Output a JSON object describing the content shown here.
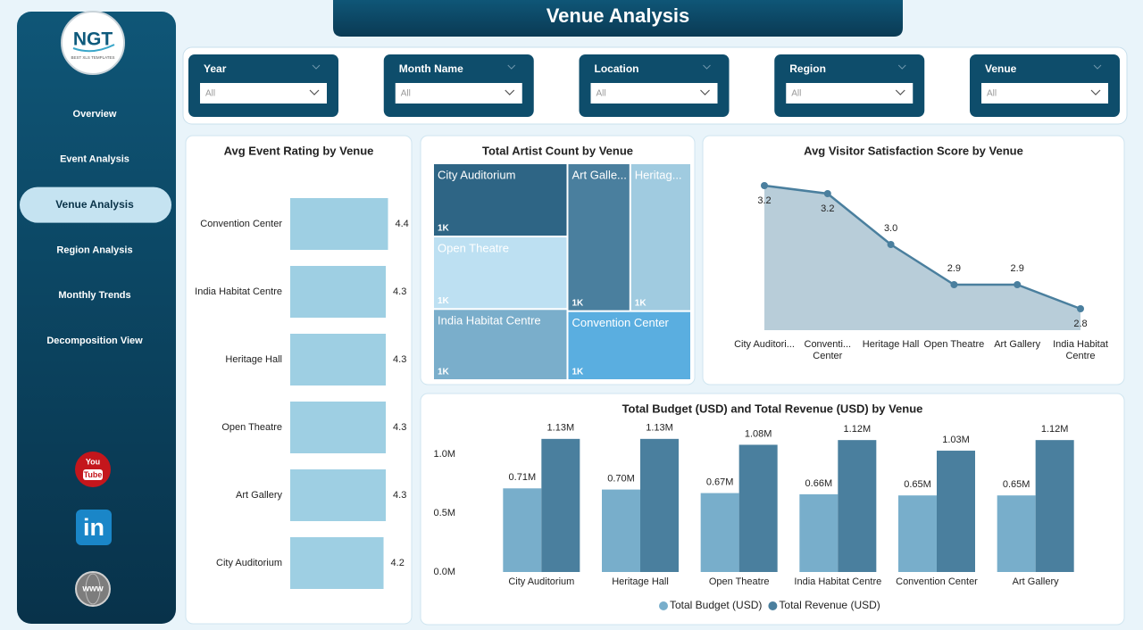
{
  "header": {
    "title": "Venue Analysis"
  },
  "sidebar": {
    "logo": {
      "text": "NGT",
      "tagline": "BEST XLS TEMPLATES"
    },
    "nav": [
      "Overview",
      "Event Analysis",
      "Venue Analysis",
      "Region Analysis",
      "Monthly Trends",
      "Decomposition View"
    ],
    "active_index": 2,
    "icons": {
      "youtube": [
        "You",
        "Tube"
      ],
      "linkedin": "in",
      "website": "www"
    }
  },
  "filters": [
    {
      "label": "Year",
      "value": "All"
    },
    {
      "label": "Month Name",
      "value": "All"
    },
    {
      "label": "Location",
      "value": "All"
    },
    {
      "label": "Region",
      "value": "All"
    },
    {
      "label": "Venue",
      "value": "All"
    }
  ],
  "chart_data": [
    {
      "type": "bar",
      "orientation": "horizontal",
      "title": "Avg Event Rating by Venue",
      "categories": [
        "Convention Center",
        "India Habitat Centre",
        "Heritage Hall",
        "Open Theatre",
        "Art Gallery",
        "City Auditorium"
      ],
      "values": [
        4.4,
        4.3,
        4.3,
        4.3,
        4.3,
        4.2
      ],
      "color": "#9ecfe3",
      "xlim": [
        0,
        4.5
      ]
    },
    {
      "type": "treemap",
      "title": "Total Artist Count by Venue",
      "categories": [
        "City Auditorium",
        "Art Galle...",
        "Heritag...",
        "Open Theatre",
        "India Habitat Centre",
        "Convention Center"
      ],
      "values": [
        1060,
        1000,
        970,
        1050,
        1030,
        920
      ],
      "value_labels": [
        "1K",
        "1K",
        "1K",
        "1K",
        "1K",
        "1K"
      ],
      "colors": [
        "#2e6585",
        "#4a7f9e",
        "#a0cbe0",
        "#bde0f2",
        "#7aaecb",
        "#5aaee0"
      ]
    },
    {
      "type": "area",
      "title": "Avg Visitor Satisfaction Score by Venue",
      "categories": [
        "City Auditori...",
        "Conventi... Center",
        "Heritage Hall",
        "Open Theatre",
        "Art Gallery",
        "India Habitat Centre"
      ],
      "values": [
        3.24,
        3.21,
        3.02,
        2.87,
        2.87,
        2.78
      ],
      "value_labels": [
        "3.2",
        "3.2",
        "3.0",
        "2.9",
        "2.9",
        "2.8"
      ],
      "color": "#4a7f9e",
      "fill": "#b8cdd9",
      "ylim": [
        2.7,
        3.3
      ]
    },
    {
      "type": "grouped_bar",
      "title": "Total Budget (USD) and Total Revenue (USD) by Venue",
      "categories": [
        "City Auditorium",
        "Heritage Hall",
        "Open Theatre",
        "India Habitat Centre",
        "Convention Center",
        "Art Gallery"
      ],
      "series": [
        {
          "name": "Total Budget (USD)",
          "color": "#78aecb",
          "values": [
            710000,
            700000,
            670000,
            660000,
            650000,
            650000
          ],
          "value_labels": [
            "0.71M",
            "0.70M",
            "0.67M",
            "0.66M",
            "0.65M",
            "0.65M"
          ]
        },
        {
          "name": "Total Revenue (USD)",
          "color": "#4a7f9e",
          "values": [
            1130000,
            1130000,
            1080000,
            1120000,
            1030000,
            1120000
          ],
          "value_labels": [
            "1.13M",
            "1.13M",
            "1.08M",
            "1.12M",
            "1.03M",
            "1.12M"
          ]
        }
      ],
      "ylim": [
        0,
        1250000
      ],
      "yticks": [
        {
          "value": 0,
          "label": "0.0M"
        },
        {
          "value": 500000,
          "label": "0.5M"
        },
        {
          "value": 1000000,
          "label": "1.0M"
        }
      ],
      "grid": false,
      "legend": "bottom"
    }
  ]
}
